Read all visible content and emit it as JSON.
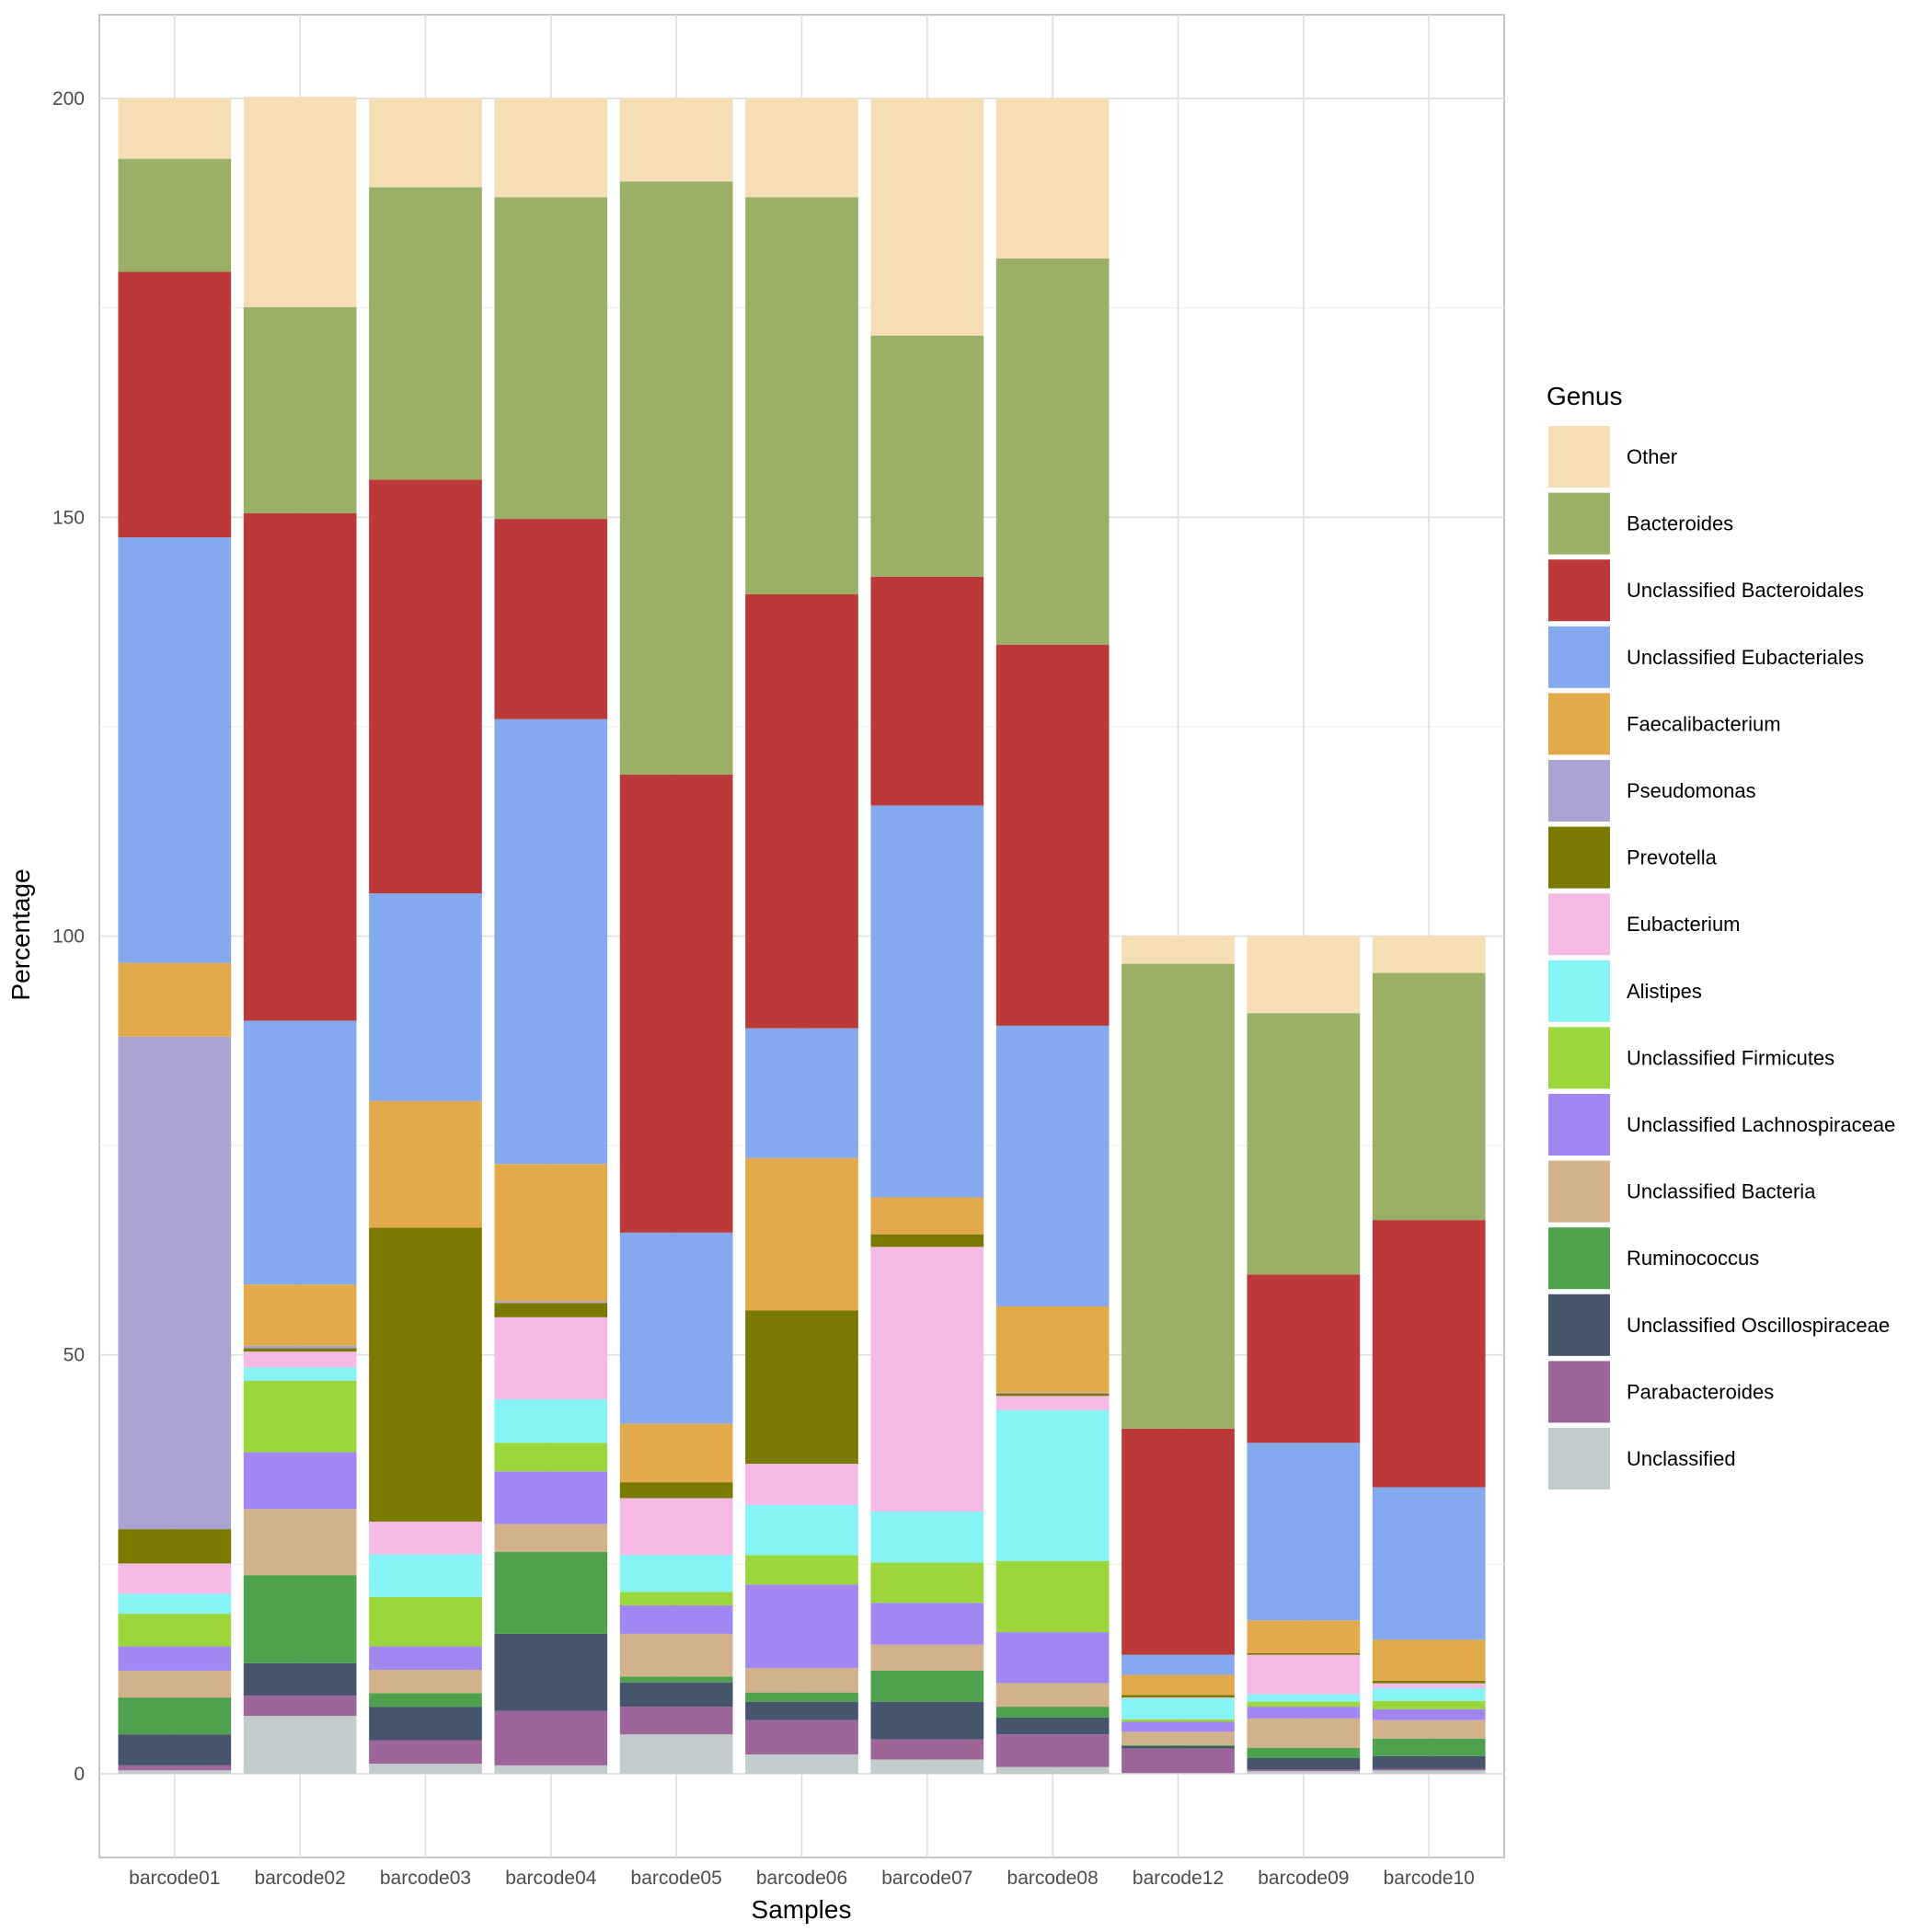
{
  "chart_data": {
    "type": "bar",
    "stacked": true,
    "xlabel": "Samples",
    "ylabel": "Percentage",
    "ylim": [
      -10,
      210
    ],
    "yticks": [
      0,
      50,
      100,
      150,
      200
    ],
    "grid": true,
    "legend_title": "Genus",
    "legend_position": "right",
    "categories": [
      "barcode01",
      "barcode02",
      "barcode03",
      "barcode04",
      "barcode05",
      "barcode06",
      "barcode07",
      "barcode08",
      "barcode12",
      "barcode09",
      "barcode10"
    ],
    "series": [
      {
        "name": "Other",
        "color": "#F5DEB3",
        "values": [
          7.2,
          25.1,
          10.6,
          11.8,
          9.9,
          11.8,
          28.3,
          19.1,
          3.3,
          9.2,
          4.4
        ]
      },
      {
        "name": "Bacteroides",
        "color": "#9AB067",
        "values": [
          13.5,
          24.6,
          34.9,
          38.4,
          70.8,
          47.4,
          28.8,
          46.1,
          55.5,
          31.2,
          29.5
        ]
      },
      {
        "name": "Unclassified Bacteroidales",
        "color": "#BB3939",
        "values": [
          31.7,
          60.6,
          49.4,
          23.9,
          54.7,
          51.8,
          27.3,
          45.5,
          27.0,
          20.1,
          31.9
        ]
      },
      {
        "name": "Unclassified Eubacteriales",
        "color": "#84A9EE",
        "values": [
          50.8,
          31.5,
          24.8,
          53.1,
          22.8,
          15.5,
          46.8,
          33.5,
          2.4,
          21.2,
          18.2
        ]
      },
      {
        "name": "Faecalibacterium",
        "color": "#E2AA4A",
        "values": [
          8.8,
          7.3,
          15.1,
          16.4,
          7.0,
          18.2,
          4.4,
          10.3,
          2.4,
          3.9,
          4.9
        ]
      },
      {
        "name": "Pseudomonas",
        "color": "#A9A4D3",
        "values": [
          58.8,
          0.3,
          0,
          0.2,
          0,
          0,
          0,
          0.1,
          0,
          0,
          0
        ]
      },
      {
        "name": "Prevotella",
        "color": "#7A7A00",
        "values": [
          4.1,
          0.4,
          35.1,
          1.7,
          1.9,
          18.3,
          1.5,
          0.3,
          0.3,
          0.2,
          0.3
        ]
      },
      {
        "name": "Eubacterium",
        "color": "#F4BAE4",
        "values": [
          3.6,
          1.9,
          3.9,
          9.8,
          6.8,
          4.9,
          31.6,
          1.7,
          0.1,
          4.7,
          0.6
        ]
      },
      {
        "name": "Alistipes",
        "color": "#86F4F5",
        "values": [
          2.4,
          1.6,
          5.1,
          5.2,
          4.4,
          6.0,
          6.1,
          18.0,
          2.5,
          0.9,
          1.5
        ]
      },
      {
        "name": "Unclassified Firmicutes",
        "color": "#9CD63D",
        "values": [
          3.9,
          8.5,
          5.9,
          3.4,
          1.6,
          3.5,
          4.8,
          8.5,
          0.3,
          0.6,
          1.0
        ]
      },
      {
        "name": "Unclassified Lachnospiraceae",
        "color": "#A287F2",
        "values": [
          2.9,
          6.8,
          2.8,
          6.3,
          3.4,
          10.0,
          5.0,
          6.1,
          1.2,
          1.4,
          1.3
        ]
      },
      {
        "name": "Unclassified Bacteria",
        "color": "#D1B28B",
        "values": [
          3.2,
          7.9,
          2.8,
          3.3,
          5.1,
          2.9,
          3.1,
          2.8,
          1.6,
          3.5,
          2.2
        ]
      },
      {
        "name": "Ruminococcus",
        "color": "#4EA24D",
        "values": [
          4.4,
          10.5,
          1.6,
          9.8,
          0.7,
          1.1,
          3.7,
          1.3,
          0.1,
          1.2,
          2.1
        ]
      },
      {
        "name": "Unclassified Oscillospiraceae",
        "color": "#47556C",
        "values": [
          3.7,
          3.9,
          4.0,
          9.2,
          2.9,
          2.2,
          4.5,
          2.0,
          0.3,
          1.4,
          1.5
        ]
      },
      {
        "name": "Parabacteroides",
        "color": "#9D659A",
        "values": [
          0.6,
          2.4,
          2.8,
          6.5,
          3.3,
          4.1,
          2.4,
          3.9,
          2.9,
          0.2,
          0.2
        ]
      },
      {
        "name": "Unclassified",
        "color": "#C2CCCC",
        "values": [
          0.4,
          6.9,
          1.2,
          1.0,
          4.7,
          2.3,
          1.7,
          0.8,
          0.1,
          0.3,
          0.4
        ]
      }
    ]
  }
}
